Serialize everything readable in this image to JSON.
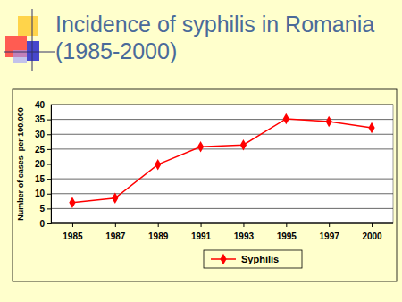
{
  "chart_data": {
    "type": "line",
    "title": "Incidence of syphilis in Romania (1985-2000)",
    "y_label": "Number of cases  per 100,000",
    "categories": [
      "1985",
      "1987",
      "1989",
      "1991",
      "1993",
      "1995",
      "1997",
      "2000"
    ],
    "series": [
      {
        "name": "Syphilis",
        "color": "#ff0000",
        "marker": "diamond",
        "values": [
          7,
          8.5,
          19.8,
          25.8,
          26.4,
          35.2,
          34.3,
          32.2
        ]
      }
    ],
    "ylim": [
      0,
      40
    ],
    "yticks": [
      0,
      5,
      10,
      15,
      20,
      25,
      30,
      35,
      40
    ],
    "grid": true,
    "legend": "bottom"
  }
}
